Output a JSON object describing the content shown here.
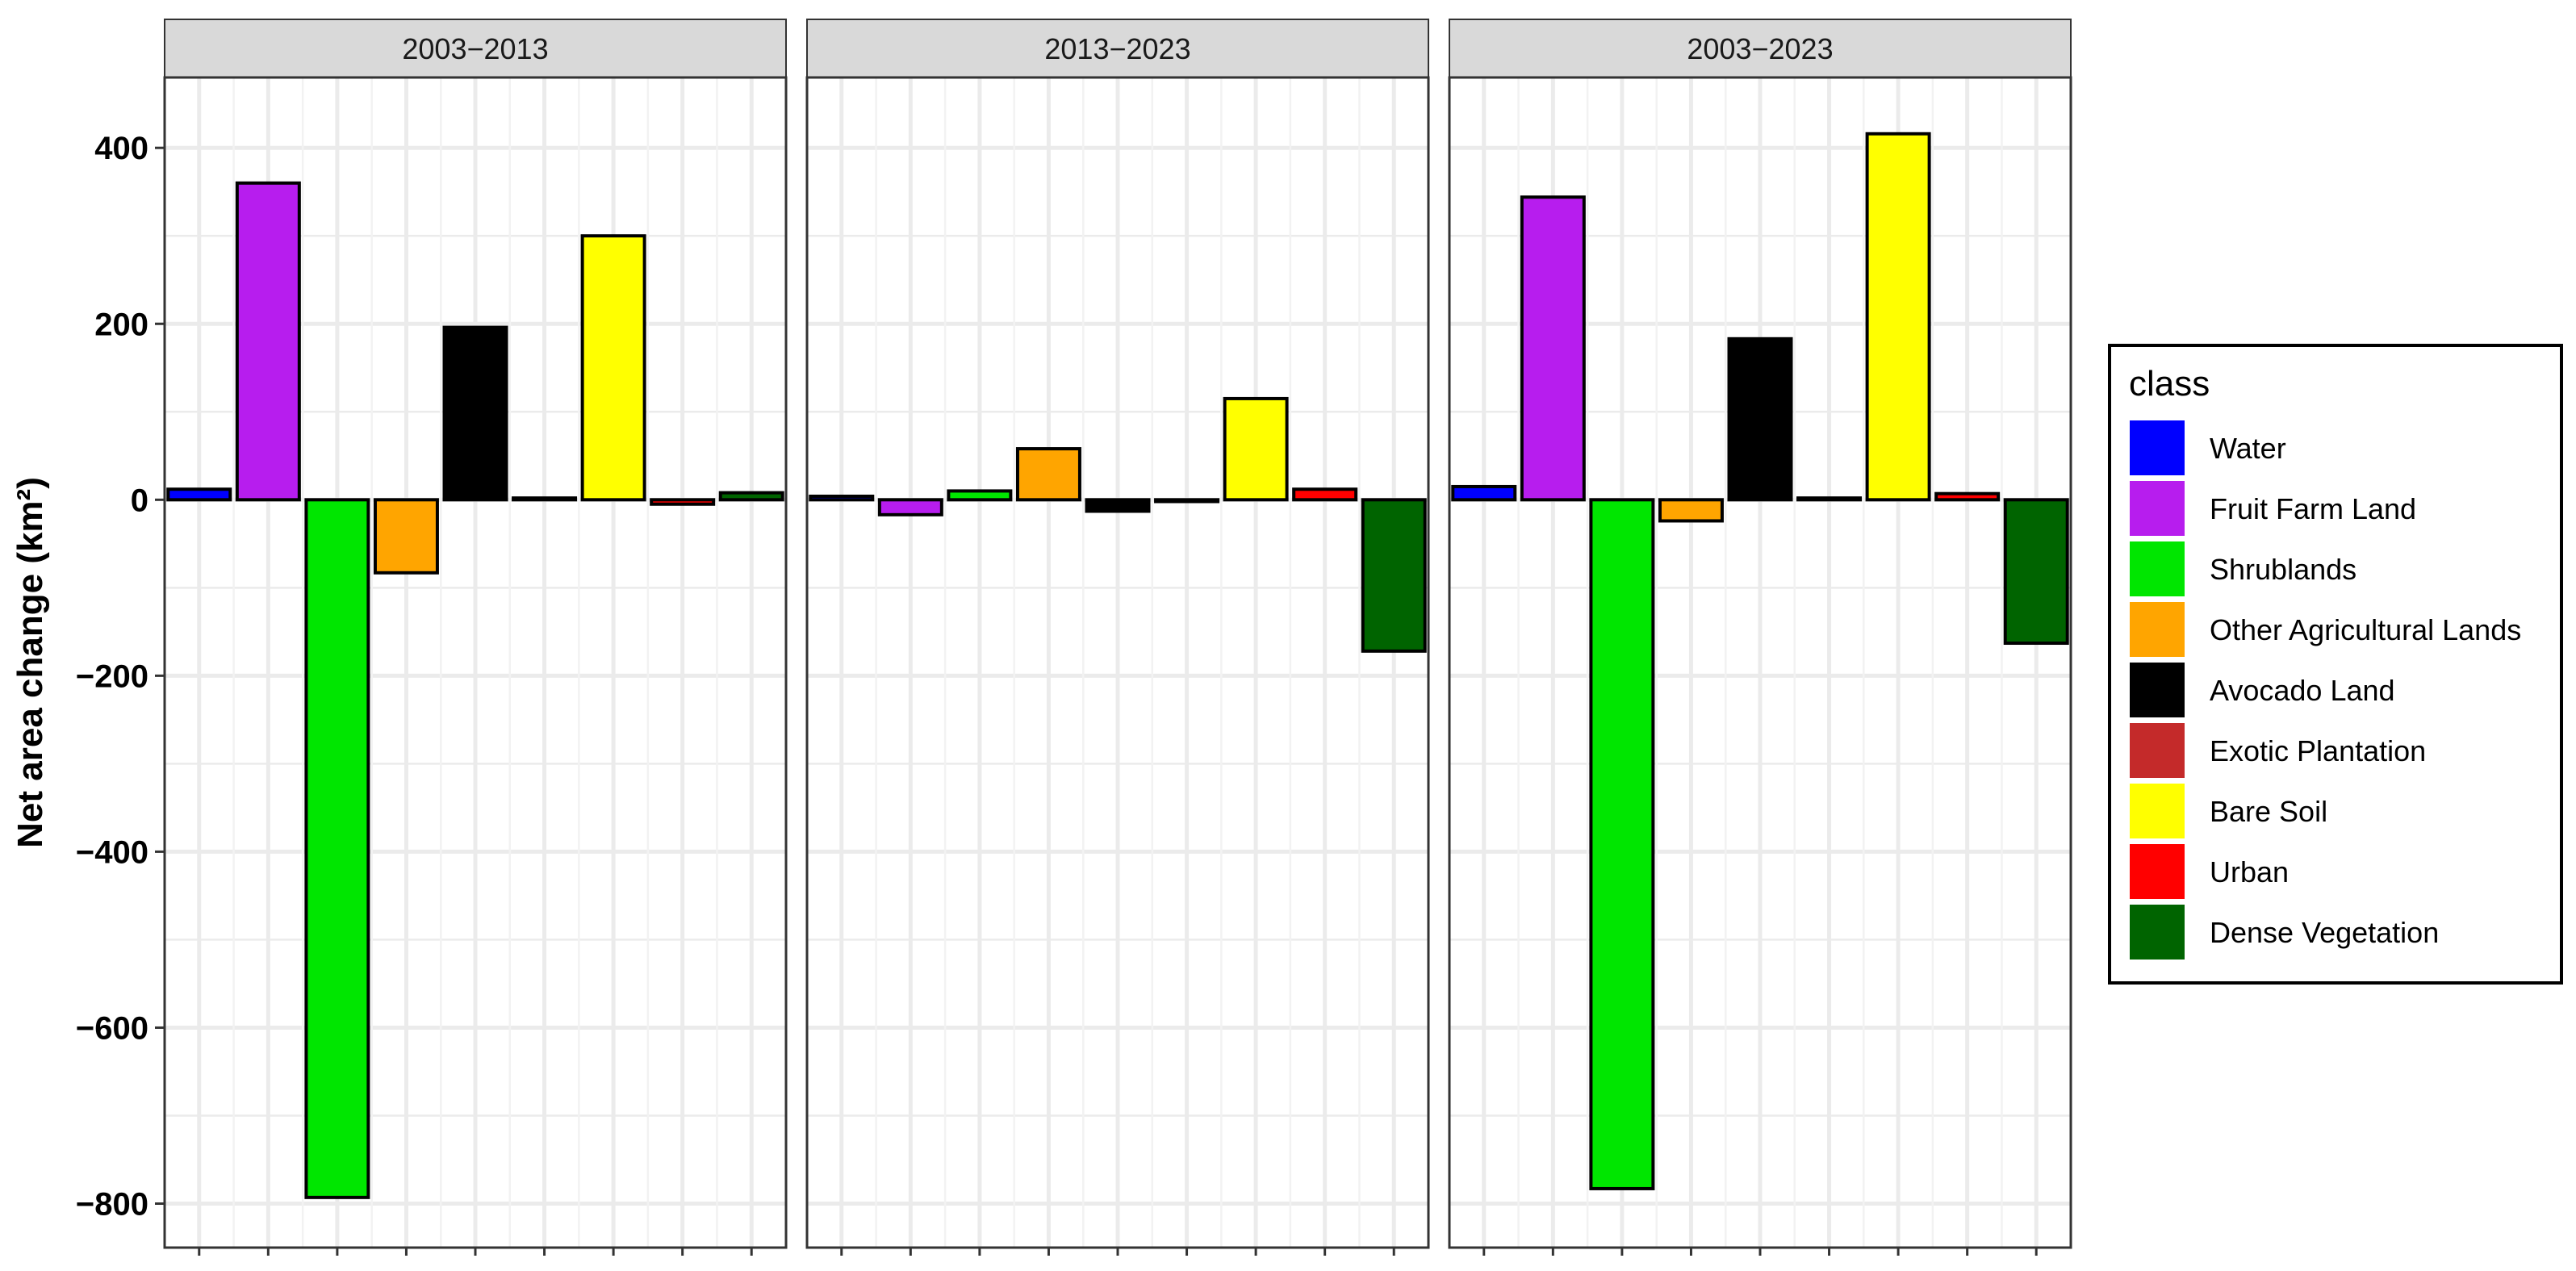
{
  "chart_data": {
    "type": "bar",
    "facet_type": "faceted-bar",
    "ylabel": "Net area change (km²)",
    "ylim": [
      -850,
      480
    ],
    "yticks": [
      400,
      200,
      0,
      -200,
      -400,
      -600,
      -800
    ],
    "ytick_labels": [
      "400",
      "200",
      "0",
      "−200",
      "−400",
      "−600",
      "−800"
    ],
    "grid": true,
    "legend": {
      "title": "class",
      "position": "right"
    },
    "categories": [
      "Water",
      "Fruit Farm Land",
      "Shrublands",
      "Other Agricultural Lands",
      "Avocado Land",
      "Exotic Plantation",
      "Bare Soil",
      "Urban",
      "Dense Vegetation"
    ],
    "colors": [
      "#0000FF",
      "#B71DEE",
      "#00E600",
      "#FFA500",
      "#000000",
      "#C42A2A",
      "#FFFF00",
      "#FF0000",
      "#006400"
    ],
    "panels": [
      {
        "title": "2003−2013",
        "values": [
          12,
          360,
          -793,
          -83,
          196,
          2,
          300,
          -5,
          8
        ]
      },
      {
        "title": "2013−2023",
        "values": [
          4,
          -17,
          10,
          58,
          -13,
          -2,
          115,
          12,
          -172
        ]
      },
      {
        "title": "2003−2023",
        "values": [
          15,
          344,
          -783,
          -24,
          183,
          2,
          416,
          7,
          -163
        ]
      }
    ]
  }
}
